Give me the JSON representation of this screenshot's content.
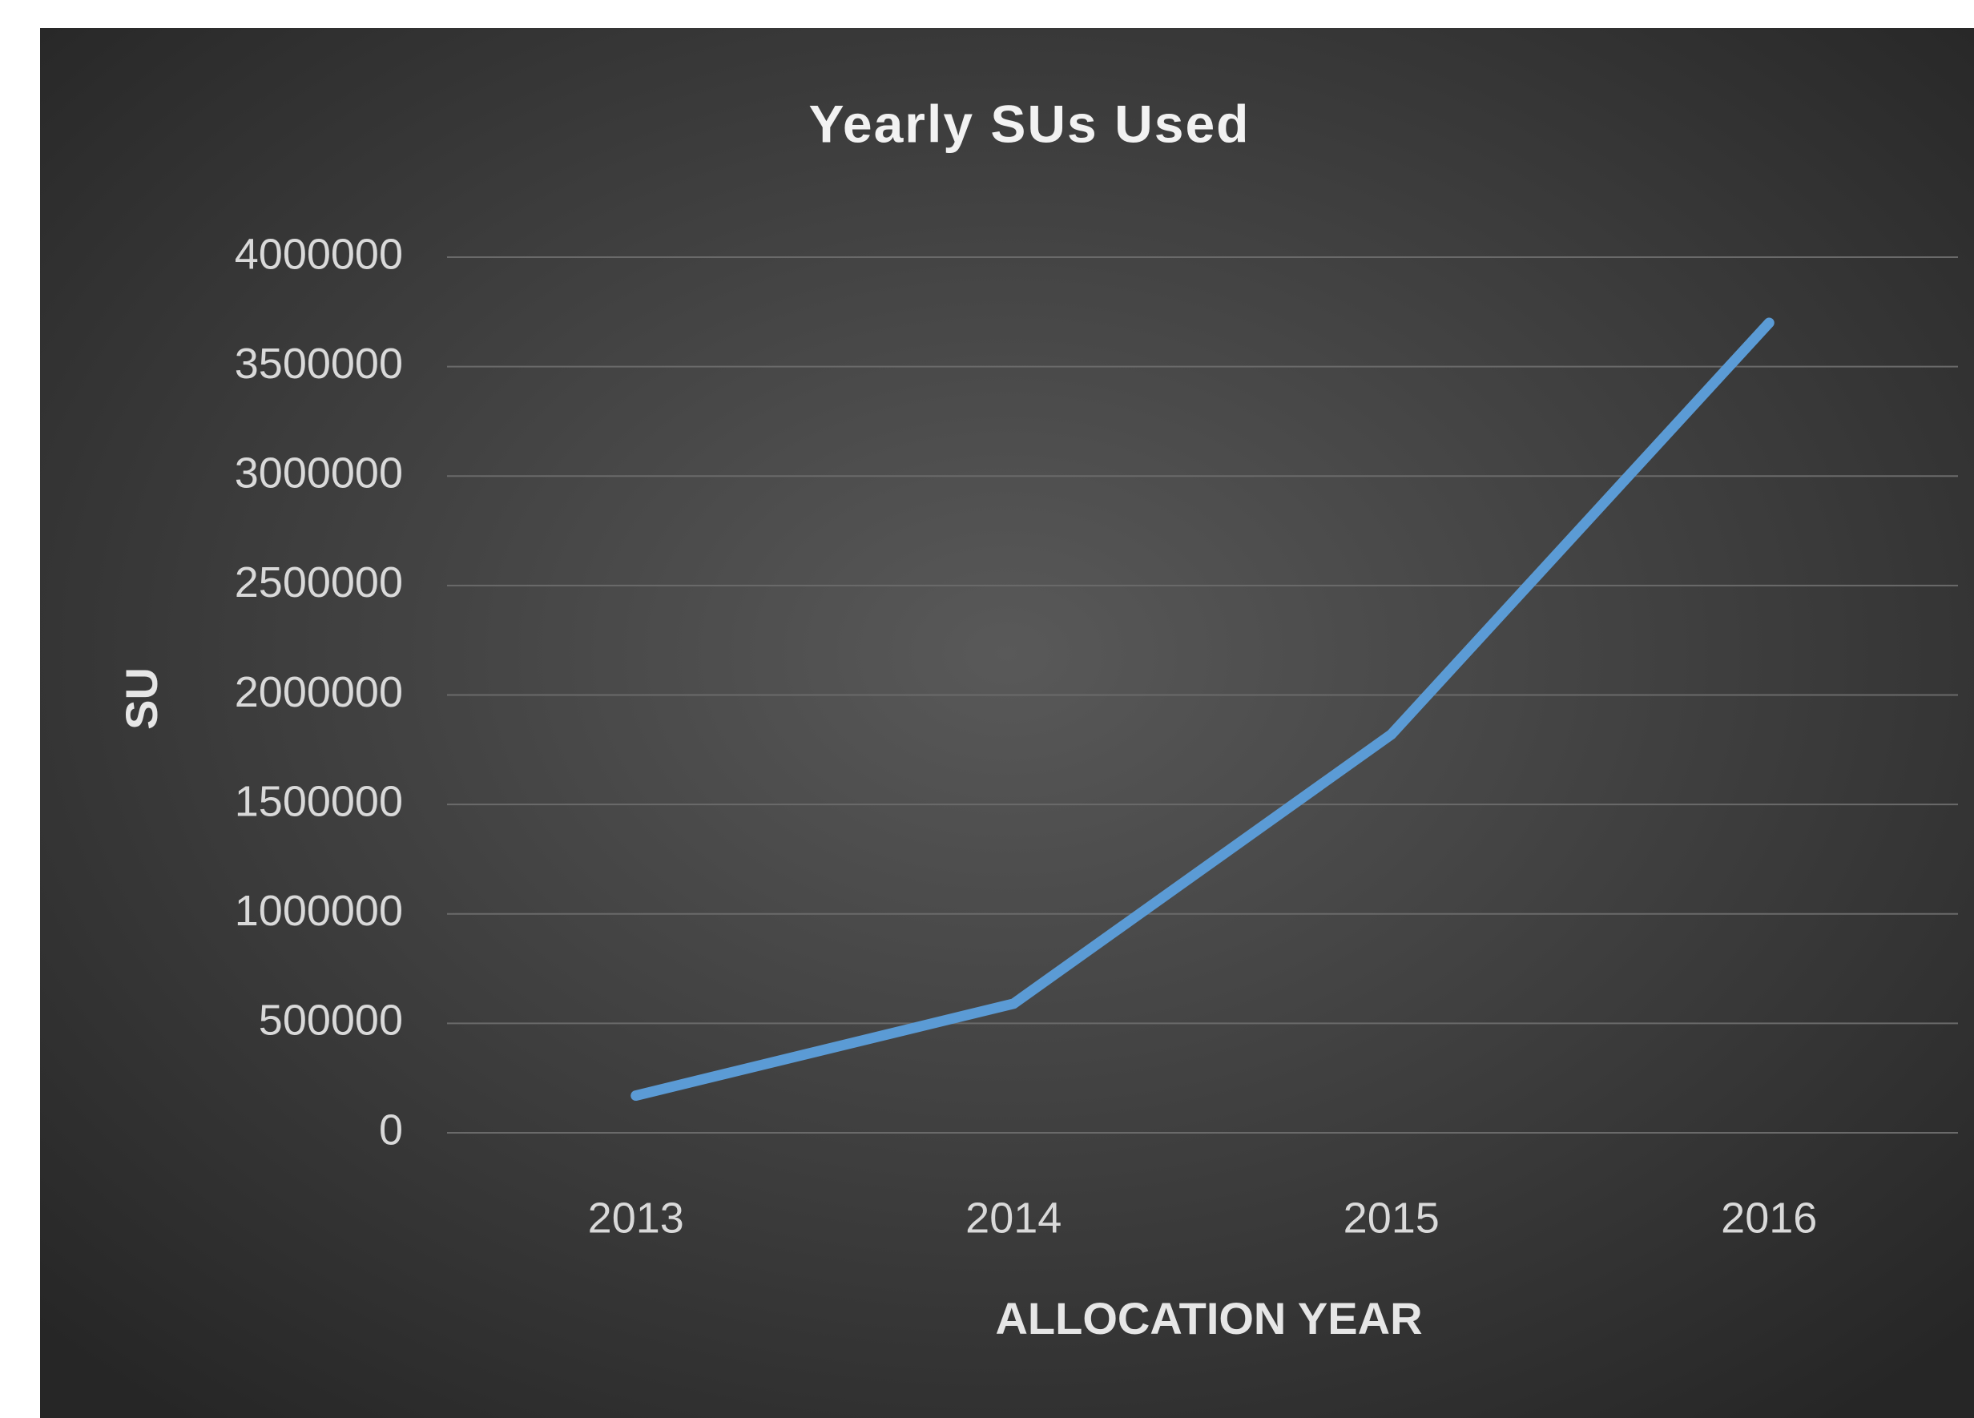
{
  "chart_data": {
    "type": "line",
    "title": "Yearly SUs Used",
    "x_label": "ALLOCATION YEAR",
    "y_label": "SU",
    "categories": [
      "2013",
      "2014",
      "2015",
      "2016"
    ],
    "values": [
      170000,
      590000,
      1820000,
      3700000
    ],
    "color": "#5b9bd5",
    "ylim": [
      0,
      4000000
    ],
    "yticks": [
      0,
      500000,
      1000000,
      1500000,
      2000000,
      2500000,
      3000000,
      3500000,
      4000000
    ],
    "grid": true
  }
}
